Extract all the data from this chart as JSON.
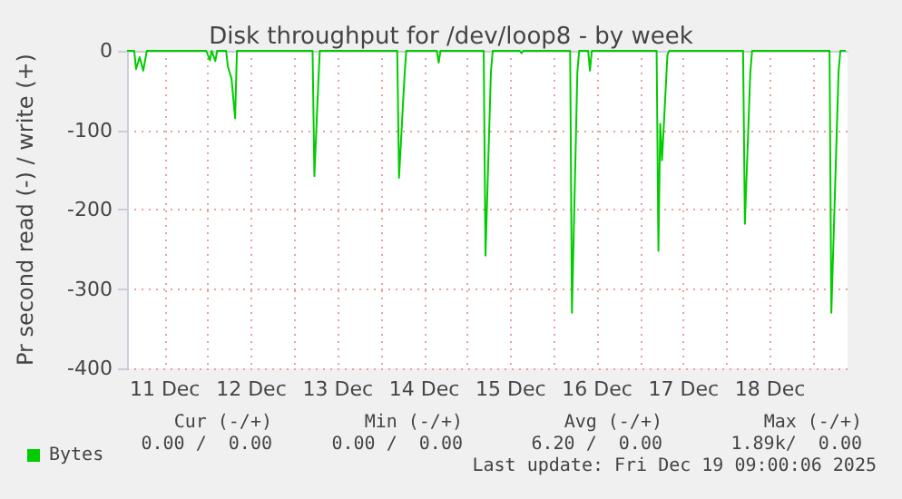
{
  "chart_data": {
    "type": "line",
    "title": "Disk throughput for /dev/loop8 - by week",
    "ylabel": "Pr second read (-) / write (+)",
    "x": [
      "2025-12-11T01:30",
      "2025-12-11T03:30",
      "2025-12-11T04:00",
      "2025-12-11T05:00",
      "2025-12-11T06:00",
      "2025-12-11T07:00",
      "2025-12-11T23:30",
      "2025-12-12T00:30",
      "2025-12-12T01:00",
      "2025-12-12T02:00",
      "2025-12-12T02:30",
      "2025-12-12T05:00",
      "2025-12-12T05:30",
      "2025-12-12T06:30",
      "2025-12-12T07:30",
      "2025-12-12T08:00",
      "2025-12-13T05:00",
      "2025-12-13T05:30",
      "2025-12-13T06:30",
      "2025-12-13T07:00",
      "2025-12-14T04:30",
      "2025-12-14T05:00",
      "2025-12-14T06:30",
      "2025-12-14T07:00",
      "2025-12-14T15:30",
      "2025-12-14T16:00",
      "2025-12-14T16:30",
      "2025-12-15T04:30",
      "2025-12-15T05:00",
      "2025-12-15T06:30",
      "2025-12-15T07:00",
      "2025-12-15T14:30",
      "2025-12-15T15:00",
      "2025-12-15T15:30",
      "2025-12-16T04:30",
      "2025-12-16T05:00",
      "2025-12-16T06:30",
      "2025-12-16T07:00",
      "2025-12-16T09:30",
      "2025-12-16T10:00",
      "2025-12-16T10:30",
      "2025-12-17T04:30",
      "2025-12-17T05:00",
      "2025-12-17T05:30",
      "2025-12-17T06:00",
      "2025-12-17T07:30",
      "2025-12-17T08:00",
      "2025-12-18T04:30",
      "2025-12-18T05:00",
      "2025-12-18T06:30",
      "2025-12-18T07:00",
      "2025-12-19T04:30",
      "2025-12-19T05:00",
      "2025-12-19T07:00",
      "2025-12-19T07:30",
      "2025-12-19T09:00"
    ],
    "series": [
      {
        "name": "Bytes",
        "color": "#00cc00",
        "values": [
          0,
          0,
          -23,
          -8,
          -25,
          0,
          0,
          -12,
          0,
          -13,
          0,
          0,
          -20,
          -35,
          -85,
          0,
          0,
          -158,
          -50,
          0,
          0,
          -160,
          -33,
          0,
          0,
          -15,
          0,
          0,
          -258,
          -27,
          0,
          0,
          -3,
          0,
          0,
          -330,
          -27,
          0,
          0,
          -25,
          0,
          0,
          -252,
          -92,
          -138,
          -5,
          0,
          0,
          -218,
          -28,
          0,
          0,
          -330,
          -27,
          0,
          0
        ]
      }
    ],
    "xlim": [
      "2025-12-11T01:30",
      "2025-12-19T09:30"
    ],
    "xticks": [
      {
        "value": "2025-12-11T12:00",
        "label": "11 Dec"
      },
      {
        "value": "2025-12-12T00:00",
        "label": null
      },
      {
        "value": "2025-12-12T12:00",
        "label": "12 Dec"
      },
      {
        "value": "2025-12-13T00:00",
        "label": null
      },
      {
        "value": "2025-12-13T12:00",
        "label": "13 Dec"
      },
      {
        "value": "2025-12-14T00:00",
        "label": null
      },
      {
        "value": "2025-12-14T12:00",
        "label": "14 Dec"
      },
      {
        "value": "2025-12-15T00:00",
        "label": null
      },
      {
        "value": "2025-12-15T12:00",
        "label": "15 Dec"
      },
      {
        "value": "2025-12-16T00:00",
        "label": null
      },
      {
        "value": "2025-12-16T12:00",
        "label": "16 Dec"
      },
      {
        "value": "2025-12-17T00:00",
        "label": null
      },
      {
        "value": "2025-12-17T12:00",
        "label": "17 Dec"
      },
      {
        "value": "2025-12-18T00:00",
        "label": null
      },
      {
        "value": "2025-12-18T12:00",
        "label": "18 Dec"
      },
      {
        "value": "2025-12-19T00:00",
        "label": null
      }
    ],
    "ylim": [
      -400,
      0
    ],
    "yticks": [
      -400,
      -300,
      -200,
      -100,
      0
    ],
    "grid": true,
    "legend": "bottom left",
    "annotations": [
      "Cur (-/+)",
      "Min (-/+)",
      "Avg (-/+)",
      "Max (-/+)",
      "0.00 /  0.00",
      "0.00 /  0.00",
      "6.20 /  0.00",
      "1.89k/  0.00",
      "Last update: Fri Dec 19 09:00:06 2025"
    ]
  }
}
